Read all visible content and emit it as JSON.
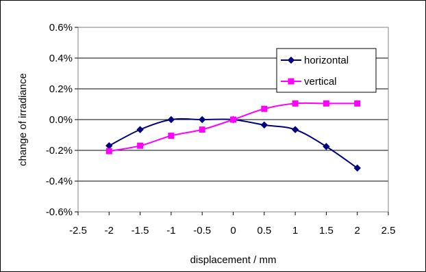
{
  "chart_data": {
    "type": "line",
    "title": "",
    "xlabel": "displacement / mm",
    "ylabel": "change of irradiance",
    "xlim": [
      -2.5,
      2.5
    ],
    "ylim": [
      -0.6,
      0.6
    ],
    "x_ticks": [
      "-2.5",
      "-2",
      "-1.5",
      "-1",
      "-0.5",
      "0",
      "0.5",
      "1",
      "1.5",
      "2",
      "2.5"
    ],
    "y_ticks": [
      "0.6%",
      "0.4%",
      "0.2%",
      "0.0%",
      "-0.2%",
      "-0.4%",
      "-0.6%"
    ],
    "grid": "horizontal",
    "legend_position": "right",
    "series": [
      {
        "name": "horizontal",
        "color": "#000080",
        "marker": "diamond",
        "x": [
          -2,
          -1.5,
          -1,
          -0.5,
          0,
          0.5,
          1,
          1.5,
          2
        ],
        "y": [
          -0.17,
          -0.065,
          0.0,
          0.0,
          0.0,
          -0.035,
          -0.065,
          -0.175,
          -0.315
        ]
      },
      {
        "name": "vertical",
        "color": "#FF00FF",
        "marker": "square",
        "x": [
          -2,
          -1.5,
          -1,
          -0.5,
          0,
          0.5,
          1,
          1.5,
          2
        ],
        "y": [
          -0.205,
          -0.17,
          -0.105,
          -0.065,
          0.0,
          0.07,
          0.105,
          0.105,
          0.105
        ]
      }
    ]
  }
}
